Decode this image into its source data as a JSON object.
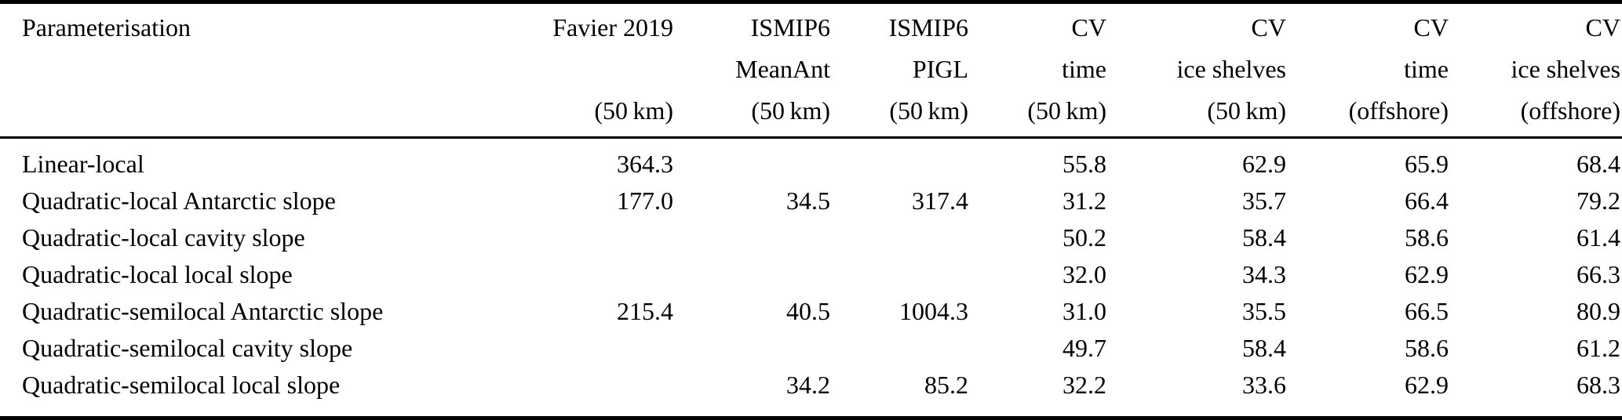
{
  "colors": {
    "background": "#ffffff",
    "text": "#000000",
    "rule": "#000000"
  },
  "table": {
    "columns": [
      {
        "id": "parameterisation",
        "lines": [
          "Parameterisation",
          "",
          ""
        ]
      },
      {
        "id": "favier-2019-50km",
        "lines": [
          "Favier 2019",
          "",
          "(50 km)"
        ]
      },
      {
        "id": "ismip6-meanant-50km",
        "lines": [
          "ISMIP6",
          "MeanAnt",
          "(50 km)"
        ]
      },
      {
        "id": "ismip6-pigl-50km",
        "lines": [
          "ISMIP6",
          "PIGL",
          "(50 km)"
        ]
      },
      {
        "id": "cv-time-50km",
        "lines": [
          "CV",
          "time",
          "(50 km)"
        ]
      },
      {
        "id": "cv-ice-shelves-50km",
        "lines": [
          "CV",
          "ice shelves",
          "(50 km)"
        ]
      },
      {
        "id": "cv-time-offshore",
        "lines": [
          "CV",
          "time",
          "(offshore)"
        ]
      },
      {
        "id": "cv-ice-shelves-offshore",
        "lines": [
          "CV",
          "ice shelves",
          "(offshore)"
        ]
      }
    ],
    "rows": [
      {
        "param": "Linear-local",
        "cells": [
          "364.3",
          "",
          "",
          "55.8",
          "62.9",
          "65.9",
          "68.4"
        ]
      },
      {
        "param": "Quadratic-local Antarctic slope",
        "cells": [
          "177.0",
          "34.5",
          "317.4",
          "31.2",
          "35.7",
          "66.4",
          "79.2"
        ]
      },
      {
        "param": "Quadratic-local cavity slope",
        "cells": [
          "",
          "",
          "",
          "50.2",
          "58.4",
          "58.6",
          "61.4"
        ]
      },
      {
        "param": "Quadratic-local local slope",
        "cells": [
          "",
          "",
          "",
          "32.0",
          "34.3",
          "62.9",
          "66.3"
        ]
      },
      {
        "param": "Quadratic-semilocal Antarctic slope",
        "cells": [
          "215.4",
          "40.5",
          "1004.3",
          "31.0",
          "35.5",
          "66.5",
          "80.9"
        ]
      },
      {
        "param": "Quadratic-semilocal cavity slope",
        "cells": [
          "",
          "",
          "",
          "49.7",
          "58.4",
          "58.6",
          "61.2"
        ]
      },
      {
        "param": "Quadratic-semilocal local slope",
        "cells": [
          "",
          "34.2",
          "85.2",
          "32.2",
          "33.6",
          "62.9",
          "68.3"
        ]
      }
    ]
  }
}
